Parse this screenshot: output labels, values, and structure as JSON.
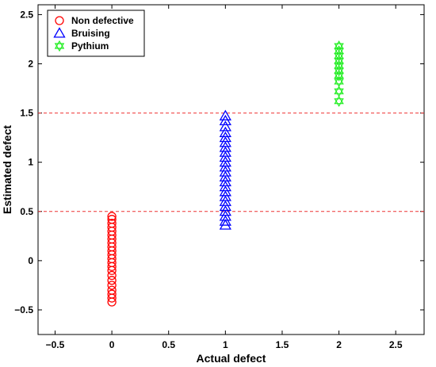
{
  "chart_data": {
    "type": "scatter",
    "title": "",
    "xlabel": "Actual defect",
    "ylabel": "Estimated defect",
    "xlim": [
      -0.65,
      2.75
    ],
    "ylim": [
      -0.75,
      2.6
    ],
    "xticks": [
      -0.5,
      0,
      0.5,
      1,
      1.5,
      2,
      2.5
    ],
    "xtick_labels": [
      "−0.5",
      "0",
      "0.5",
      "1",
      "1.5",
      "2",
      "2.5"
    ],
    "yticks": [
      -0.5,
      0,
      0.5,
      1,
      1.5,
      2,
      2.5
    ],
    "ytick_labels": [
      "−0.5",
      "0",
      "0.5",
      "1",
      "1.5",
      "2",
      "2.5"
    ],
    "grid": false,
    "legend_position": "top-left",
    "thresholds": [
      {
        "y": 0.5,
        "style": "dashed",
        "color": "#ee3333"
      },
      {
        "y": 1.5,
        "style": "dashed",
        "color": "#ee3333"
      }
    ],
    "series": [
      {
        "name": "Non defective",
        "marker": "circle",
        "color": "#ff0000",
        "x": 0,
        "y": [
          -0.42,
          -0.38,
          -0.34,
          -0.3,
          -0.25,
          -0.2,
          -0.15,
          -0.1,
          -0.06,
          -0.02,
          0.02,
          0.06,
          0.1,
          0.14,
          0.18,
          0.22,
          0.26,
          0.3,
          0.34,
          0.38,
          0.42,
          0.45
        ]
      },
      {
        "name": "Bruising",
        "marker": "triangle",
        "color": "#0000ff",
        "x": 1,
        "y": [
          0.36,
          0.4,
          0.45,
          0.5,
          0.55,
          0.6,
          0.65,
          0.7,
          0.75,
          0.8,
          0.85,
          0.9,
          0.95,
          1.0,
          1.05,
          1.1,
          1.15,
          1.2,
          1.25,
          1.3,
          1.36,
          1.42,
          1.47
        ]
      },
      {
        "name": "Pythium",
        "marker": "hexagram",
        "color": "#22ee22",
        "x": 2,
        "y": [
          1.62,
          1.72,
          1.82,
          1.88,
          1.93,
          1.98,
          2.03,
          2.08,
          2.13,
          2.18
        ]
      }
    ]
  }
}
